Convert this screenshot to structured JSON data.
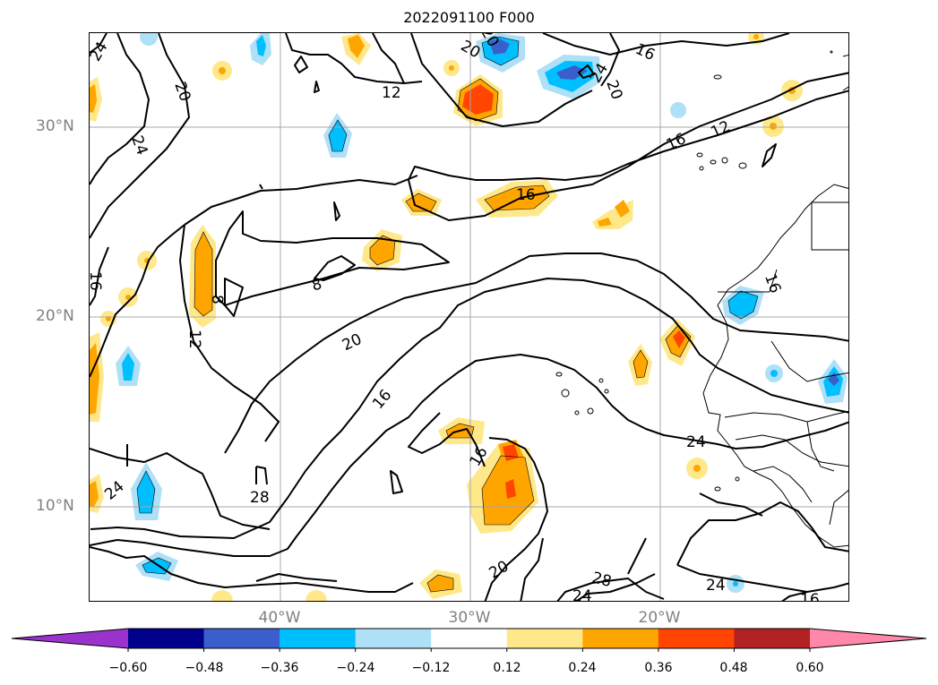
{
  "title": "2022091100 F000",
  "lat_labels": [
    "30°N",
    "20°N",
    "10°N"
  ],
  "lon_labels": [
    "40°W",
    "30°W",
    "20°W"
  ],
  "contour_labels": [
    "24",
    "20",
    "24",
    "12",
    "20",
    "16",
    "20",
    "24",
    "20",
    "16",
    "12",
    "16",
    "8",
    "8",
    "12",
    "16",
    "20",
    "16",
    "24",
    "28",
    "16",
    "24",
    "20",
    "24",
    "28",
    "24",
    "16"
  ],
  "colorbar": {
    "ticks": [
      "−0.60",
      "−0.48",
      "−0.36",
      "−0.24",
      "−0.12",
      "0.12",
      "0.24",
      "0.36",
      "0.48",
      "0.60"
    ],
    "colors": [
      "#9933cc",
      "#00008b",
      "#3a5fcd",
      "#00bfff",
      "#aee0f7",
      "#ffffff",
      "#ffe88a",
      "#ffa500",
      "#ff4500",
      "#b22222",
      "#ff88aa"
    ]
  },
  "colors": {
    "contour": "#000000",
    "grid": "#a8a8a8",
    "axis_label": "#808080"
  }
}
